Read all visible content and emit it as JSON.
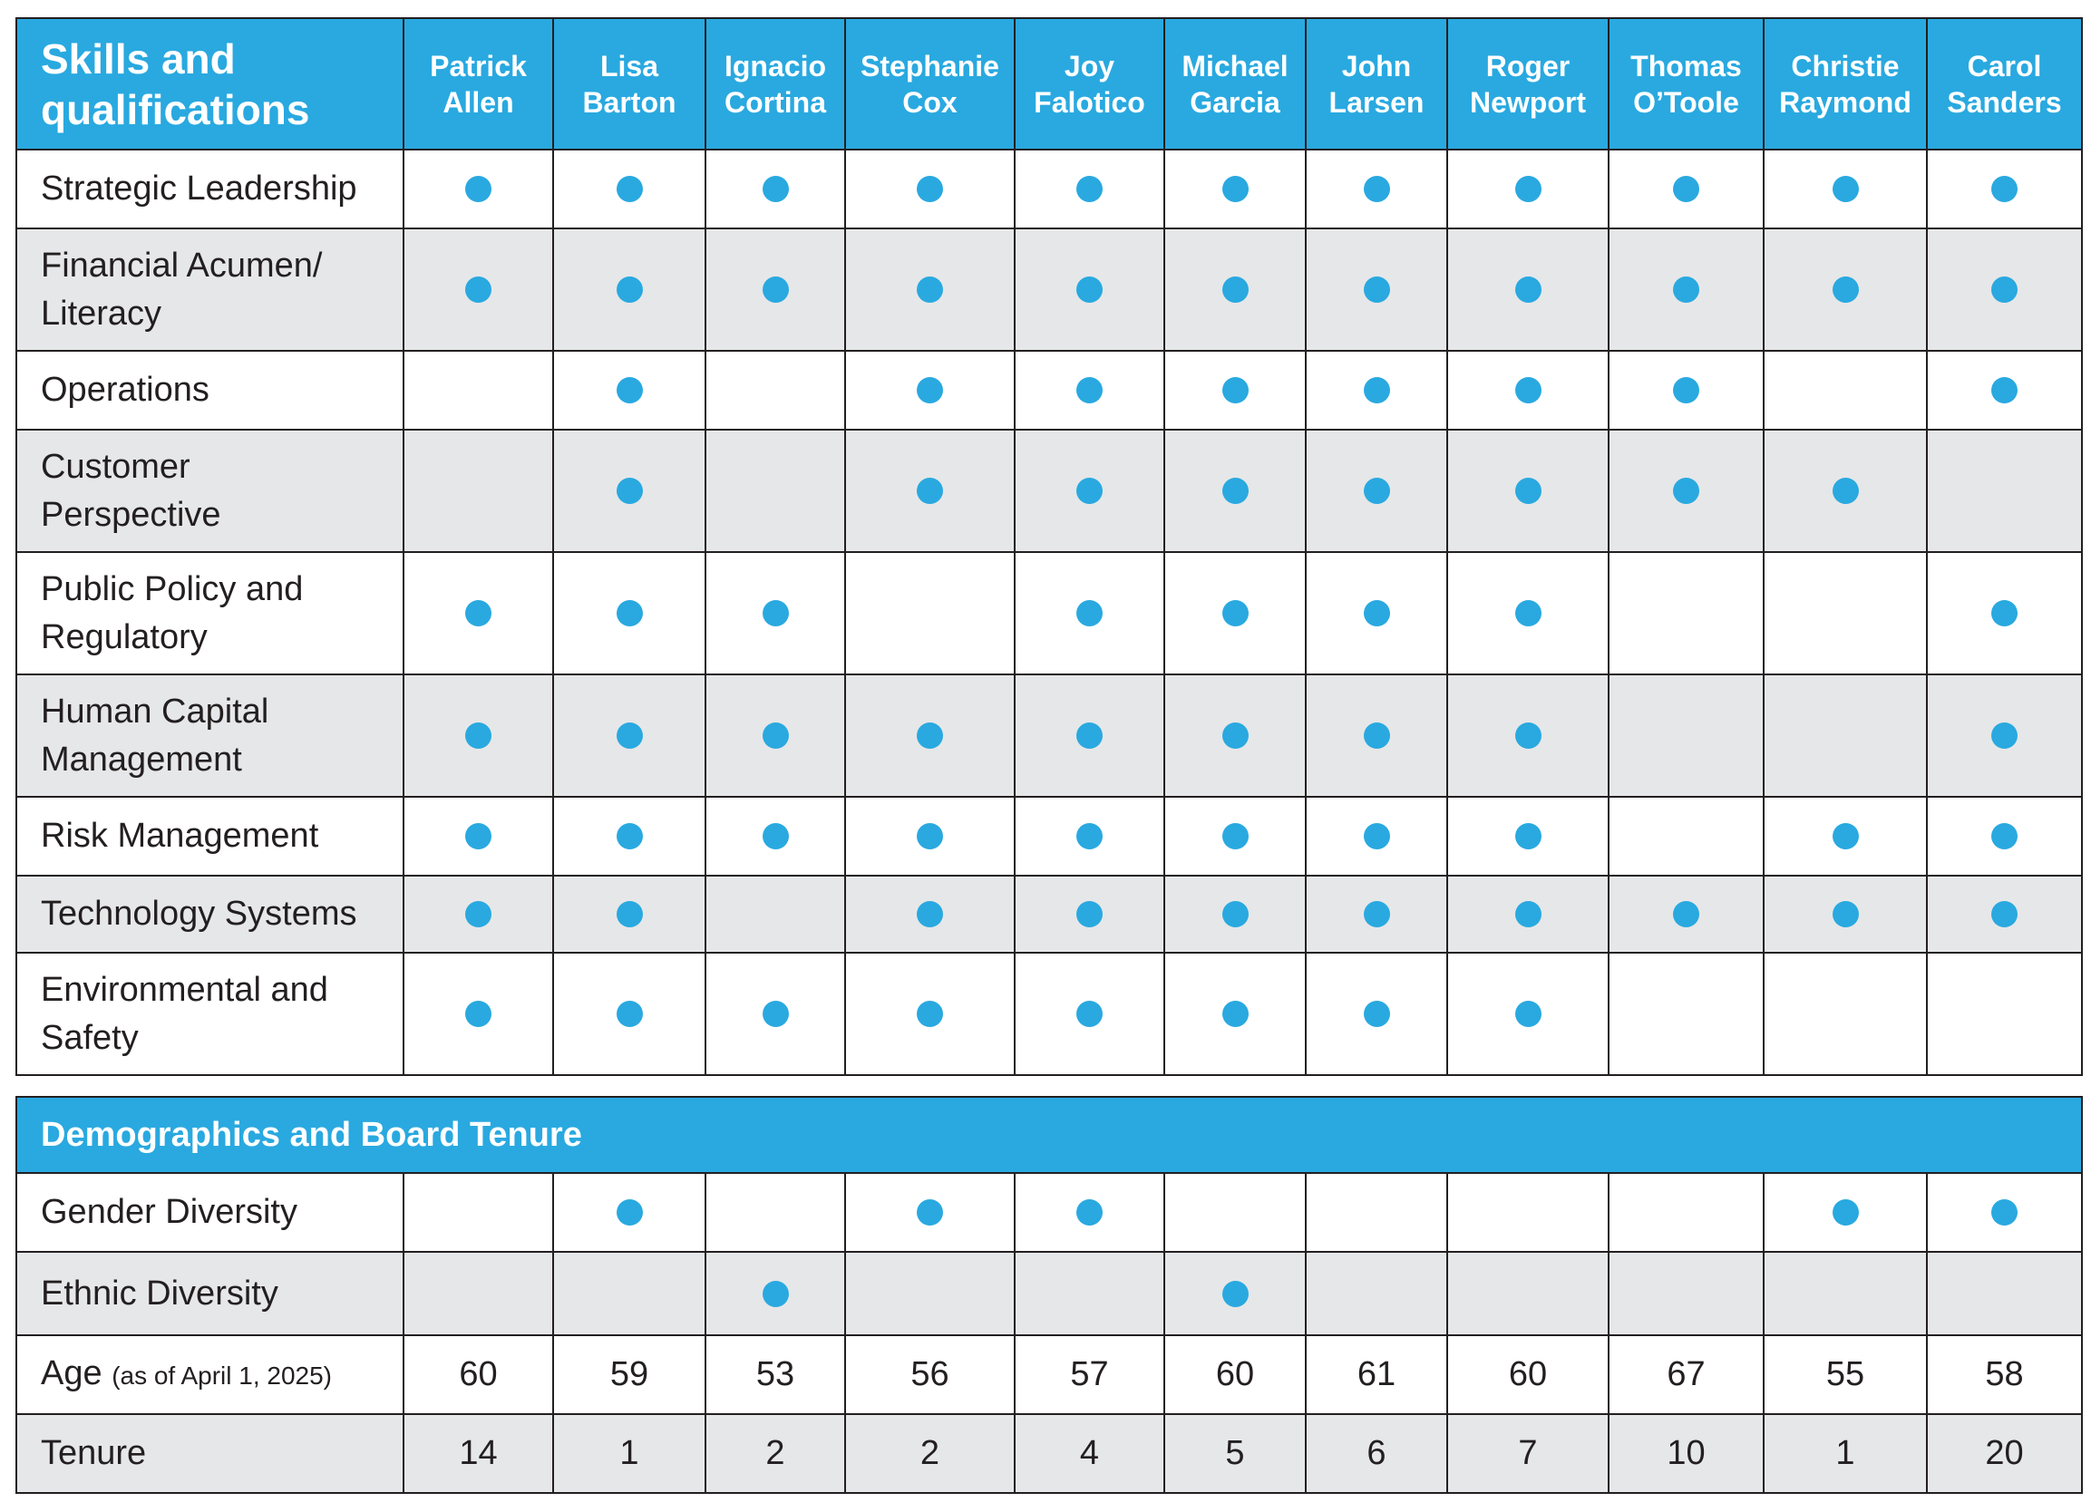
{
  "colors": {
    "header_bg": "#29a9e0",
    "header_text": "#ffffff",
    "row_shade": "#e6e7e8",
    "dot": "#29a9e0",
    "border": "#231f20"
  },
  "skills_table": {
    "title": "Skills and qualifications",
    "directors": [
      {
        "first": "Patrick",
        "last": "Allen"
      },
      {
        "first": "Lisa",
        "last": "Barton"
      },
      {
        "first": "Ignacio",
        "last": "Cortina"
      },
      {
        "first": "Stephanie",
        "last": "Cox"
      },
      {
        "first": "Joy",
        "last": "Falotico"
      },
      {
        "first": "Michael",
        "last": "Garcia"
      },
      {
        "first": "John",
        "last": "Larsen"
      },
      {
        "first": "Roger",
        "last": "Newport"
      },
      {
        "first": "Thomas",
        "last": "O’Toole"
      },
      {
        "first": "Christie",
        "last": "Raymond"
      },
      {
        "first": "Carol",
        "last": "Sanders"
      }
    ],
    "rows": [
      {
        "label_lines": [
          "Strategic Leadership"
        ],
        "marks": [
          1,
          1,
          1,
          1,
          1,
          1,
          1,
          1,
          1,
          1,
          1
        ]
      },
      {
        "label_lines": [
          "Financial Acumen/",
          "Literacy"
        ],
        "marks": [
          1,
          1,
          1,
          1,
          1,
          1,
          1,
          1,
          1,
          1,
          1
        ]
      },
      {
        "label_lines": [
          "Operations"
        ],
        "marks": [
          0,
          1,
          0,
          1,
          1,
          1,
          1,
          1,
          1,
          0,
          1
        ]
      },
      {
        "label_lines": [
          "Customer",
          "Perspective"
        ],
        "marks": [
          0,
          1,
          0,
          1,
          1,
          1,
          1,
          1,
          1,
          1,
          0
        ]
      },
      {
        "label_lines": [
          "Public Policy and",
          "Regulatory"
        ],
        "marks": [
          1,
          1,
          1,
          0,
          1,
          1,
          1,
          1,
          0,
          0,
          1
        ]
      },
      {
        "label_lines": [
          "Human Capital",
          "Management"
        ],
        "marks": [
          1,
          1,
          1,
          1,
          1,
          1,
          1,
          1,
          0,
          0,
          1
        ]
      },
      {
        "label_lines": [
          "Risk Management"
        ],
        "marks": [
          1,
          1,
          1,
          1,
          1,
          1,
          1,
          1,
          0,
          1,
          1
        ]
      },
      {
        "label_lines": [
          "Technology Systems"
        ],
        "marks": [
          1,
          1,
          0,
          1,
          1,
          1,
          1,
          1,
          1,
          1,
          1
        ]
      },
      {
        "label_lines": [
          "Environmental and",
          "Safety"
        ],
        "marks": [
          1,
          1,
          1,
          1,
          1,
          1,
          1,
          1,
          0,
          0,
          0
        ]
      }
    ]
  },
  "demographics_table": {
    "title": "Demographics and Board Tenure",
    "rows": [
      {
        "label": "Gender Diversity",
        "marks": [
          0,
          1,
          0,
          1,
          1,
          0,
          0,
          0,
          0,
          1,
          1
        ]
      },
      {
        "label": "Ethnic Diversity",
        "marks": [
          0,
          0,
          1,
          0,
          0,
          1,
          0,
          0,
          0,
          0,
          0
        ]
      }
    ],
    "age_row": {
      "label": "Age",
      "note": "(as of April 1, 2025)",
      "values": [
        "60",
        "59",
        "53",
        "56",
        "57",
        "60",
        "61",
        "60",
        "67",
        "55",
        "58"
      ]
    },
    "tenure_row": {
      "label": "Tenure",
      "values": [
        "14",
        "1",
        "2",
        "2",
        "4",
        "5",
        "6",
        "7",
        "10",
        "1",
        "20"
      ]
    }
  }
}
